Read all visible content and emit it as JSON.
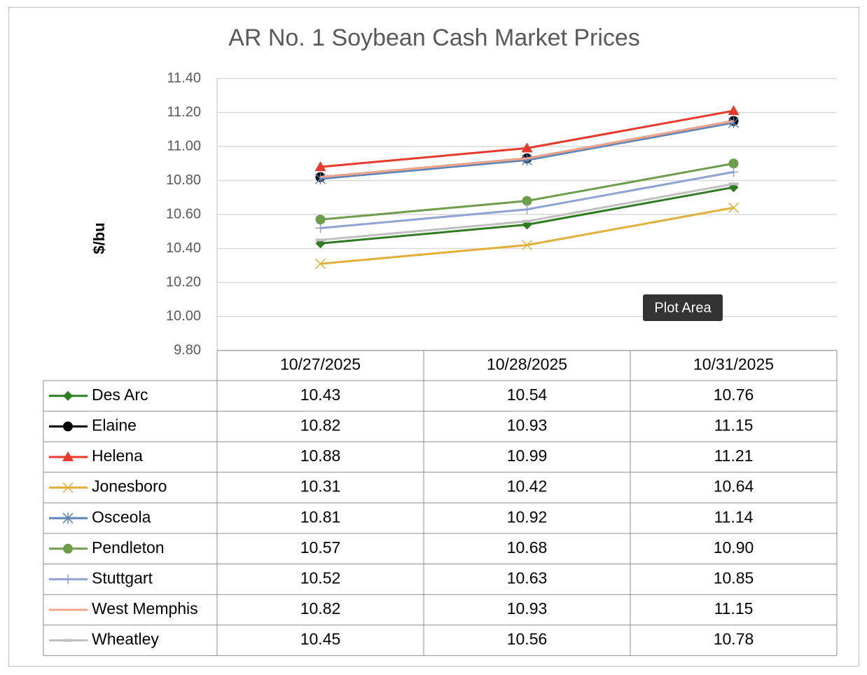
{
  "chart_data": {
    "type": "line",
    "title": "AR No. 1 Soybean Cash Market Prices",
    "y_label": "$/bu",
    "tooltip": "Plot Area",
    "categories": [
      "10/27/2025",
      "10/28/2025",
      "10/31/2025"
    ],
    "ylim": [
      9.8,
      11.4
    ],
    "yticks": [
      {
        "value": 9.8,
        "label": "9.80"
      },
      {
        "value": 10.0,
        "label": "10.00"
      },
      {
        "value": 10.2,
        "label": "10.20"
      },
      {
        "value": 10.4,
        "label": "10.40"
      },
      {
        "value": 10.6,
        "label": "10.60"
      },
      {
        "value": 10.8,
        "label": "10.80"
      },
      {
        "value": 11.0,
        "label": "11.00"
      },
      {
        "value": 11.2,
        "label": "11.20"
      },
      {
        "value": 11.4,
        "label": "11.40"
      }
    ],
    "grid": true,
    "series": [
      {
        "name": "Des Arc",
        "color": "#2e7d22",
        "marker": "diamond",
        "values": [
          10.43,
          10.54,
          10.76
        ],
        "value_labels": [
          "10.43",
          "10.54",
          "10.76"
        ]
      },
      {
        "name": "Elaine",
        "color": "#000000",
        "marker": "circle",
        "values": [
          10.82,
          10.93,
          11.15
        ],
        "value_labels": [
          "10.82",
          "10.93",
          "11.15"
        ]
      },
      {
        "name": "Helena",
        "color": "#e8392a",
        "marker": "triangle",
        "values": [
          10.88,
          10.99,
          11.21
        ],
        "value_labels": [
          "10.88",
          "10.99",
          "11.21"
        ]
      },
      {
        "name": "Jonesboro",
        "color": "#e0b03a",
        "marker": "x",
        "values": [
          10.31,
          10.42,
          10.64
        ],
        "value_labels": [
          "10.31",
          "10.42",
          "10.64"
        ]
      },
      {
        "name": "Osceola",
        "color": "#5b84b8",
        "marker": "star",
        "values": [
          10.81,
          10.92,
          11.14
        ],
        "value_labels": [
          "10.81",
          "10.92",
          "11.14"
        ]
      },
      {
        "name": "Pendleton",
        "color": "#6d9d4a",
        "marker": "circle",
        "values": [
          10.57,
          10.68,
          10.9
        ],
        "value_labels": [
          "10.57",
          "10.68",
          "10.90"
        ]
      },
      {
        "name": "Stuttgart",
        "color": "#8fa2d4",
        "marker": "plus",
        "values": [
          10.52,
          10.63,
          10.85
        ],
        "value_labels": [
          "10.52",
          "10.63",
          "10.85"
        ]
      },
      {
        "name": "West Memphis",
        "color": "#f0a58a",
        "marker": "none",
        "values": [
          10.82,
          10.93,
          11.15
        ],
        "value_labels": [
          "10.82",
          "10.93",
          "11.15"
        ]
      },
      {
        "name": "Wheatley",
        "color": "#c0c0c0",
        "marker": "dash",
        "values": [
          10.45,
          10.56,
          10.78
        ],
        "value_labels": [
          "10.45",
          "10.56",
          "10.78"
        ]
      }
    ]
  }
}
